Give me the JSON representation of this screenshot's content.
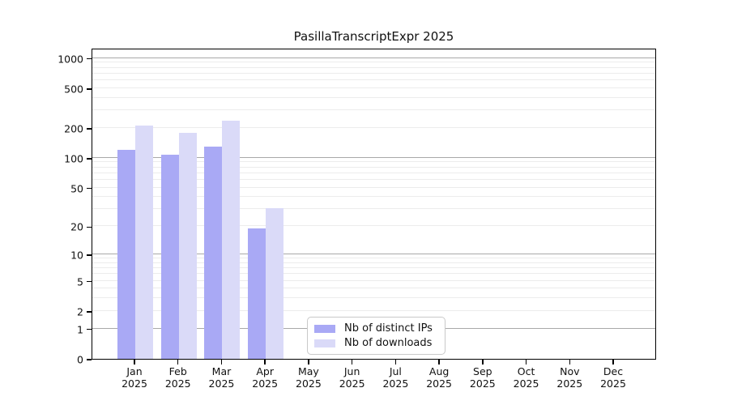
{
  "title": "PasillaTranscriptExpr 2025",
  "colors": {
    "distinct_ips": "#a9a9f5",
    "downloads": "#dadaf8",
    "grid_minor": "#ececec",
    "grid_decade": "#a9a9a9",
    "axis": "#000000",
    "legend_border": "#c9c9c9"
  },
  "legend": {
    "items": [
      {
        "key": "distinct_ips",
        "label": "Nb of distinct IPs"
      },
      {
        "key": "downloads",
        "label": "Nb of downloads"
      }
    ]
  },
  "y_axis": {
    "ticks": [
      0,
      1,
      2,
      5,
      10,
      20,
      50,
      100,
      200,
      500,
      1000
    ]
  },
  "x_axis": {
    "year": "2025",
    "months": [
      "Jan",
      "Feb",
      "Mar",
      "Apr",
      "May",
      "Jun",
      "Jul",
      "Aug",
      "Sep",
      "Oct",
      "Nov",
      "Dec"
    ]
  },
  "chart_data": {
    "type": "bar",
    "scale": "log1p",
    "title": "PasillaTranscriptExpr 2025",
    "categories": [
      "Jan 2025",
      "Feb 2025",
      "Mar 2025",
      "Apr 2025",
      "May 2025",
      "Jun 2025",
      "Jul 2025",
      "Aug 2025",
      "Sep 2025",
      "Oct 2025",
      "Nov 2025",
      "Dec 2025"
    ],
    "series": [
      {
        "name": "Nb of distinct IPs",
        "color_key": "distinct_ips",
        "values": [
          120,
          108,
          130,
          19,
          0,
          0,
          0,
          0,
          0,
          0,
          0,
          0
        ]
      },
      {
        "name": "Nb of downloads",
        "color_key": "downloads",
        "values": [
          210,
          180,
          238,
          31,
          0,
          0,
          0,
          0,
          0,
          0,
          0,
          0
        ]
      }
    ],
    "xlabel": "",
    "ylabel": "",
    "ylim": [
      0,
      1000
    ],
    "y_ticks": [
      0,
      1,
      2,
      5,
      10,
      20,
      50,
      100,
      200,
      500,
      1000
    ],
    "grid": true,
    "grid_decade_values": [
      1,
      10,
      100,
      1000
    ],
    "legend_position": "inside-bottom-center"
  }
}
